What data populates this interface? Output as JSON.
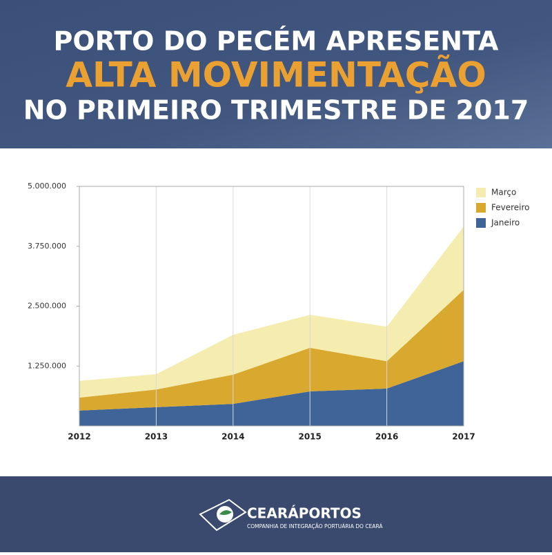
{
  "header": {
    "line1": "PORTO DO PECÉM APRESENTA",
    "line2": "ALTA MOVIMENTAÇÃO",
    "line3": "NO PRIMEIRO TRIMESTRE DE 2017"
  },
  "chart_data": {
    "type": "stacked-area",
    "categories": [
      "2012",
      "2013",
      "2014",
      "2015",
      "2016",
      "2017"
    ],
    "series": [
      {
        "name": "Janeiro",
        "color": "#3f6498",
        "values": [
          320000,
          390000,
          460000,
          720000,
          780000,
          1350000
        ]
      },
      {
        "name": "Fevereiro",
        "color": "#d9a82e",
        "values": [
          270000,
          370000,
          610000,
          910000,
          570000,
          1490000
        ]
      },
      {
        "name": "Março",
        "color": "#f5ecb0",
        "values": [
          350000,
          320000,
          830000,
          690000,
          720000,
          1320000
        ]
      }
    ],
    "ylim": [
      0,
      5000000
    ],
    "yticks": [
      {
        "value": 1250000,
        "label": "1.250.000"
      },
      {
        "value": 2500000,
        "label": "2.500.000"
      },
      {
        "value": 3750000,
        "label": "3.750.000"
      },
      {
        "value": 5000000,
        "label": "5.000.000"
      }
    ],
    "grid": "x",
    "legend": "right"
  },
  "footer": {
    "brand": "CEARÁPORTOS",
    "tagline": "COMPANHIA DE INTEGRAÇÃO PORTUÁRIA DO CEARÁ"
  }
}
